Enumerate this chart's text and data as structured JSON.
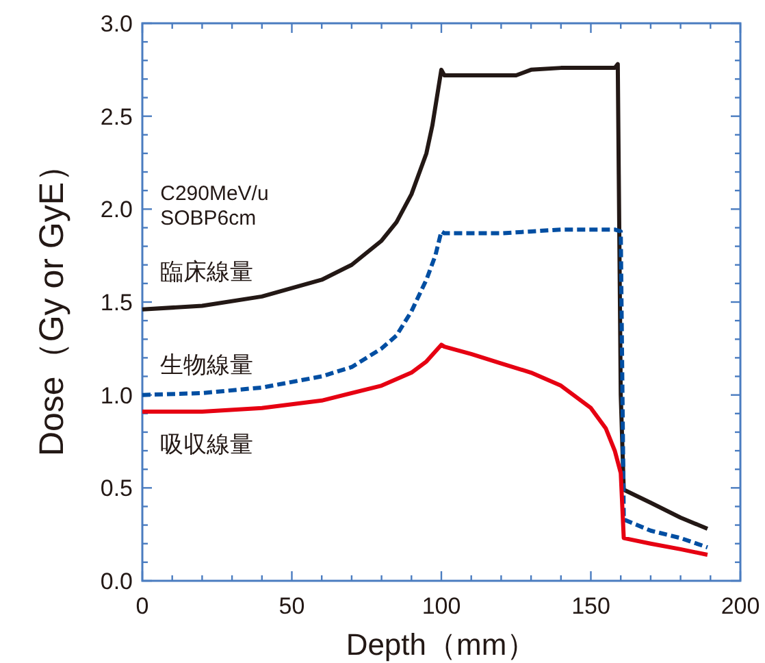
{
  "chart_data": {
    "type": "line",
    "xlabel": "Depth（mm）",
    "ylabel": "Dose（Gy or GyE）",
    "annotations": [
      "C290MeV/u",
      "SOBP6cm"
    ],
    "xlim": [
      0,
      200
    ],
    "ylim": [
      0,
      3.0
    ],
    "xticks": [
      0,
      {
        "value": 10,
        "label": null
      },
      {
        "value": 20,
        "label": null
      },
      {
        "value": 30,
        "label": null
      },
      {
        "value": 40,
        "label": null
      },
      50,
      {
        "value": 60,
        "label": null
      },
      {
        "value": 70,
        "label": null
      },
      {
        "value": 80,
        "label": null
      },
      {
        "value": 90,
        "label": null
      },
      100,
      {
        "value": 110,
        "label": null
      },
      {
        "value": 120,
        "label": null
      },
      {
        "value": 130,
        "label": null
      },
      {
        "value": 140,
        "label": null
      },
      150,
      {
        "value": 160,
        "label": null
      },
      {
        "value": 170,
        "label": null
      },
      {
        "value": 180,
        "label": null
      },
      {
        "value": 190,
        "label": null
      },
      200
    ],
    "yticks": [
      {
        "value": 0,
        "label": "0.0"
      },
      {
        "value": 0.1,
        "label": null
      },
      {
        "value": 0.2,
        "label": null
      },
      {
        "value": 0.3,
        "label": null
      },
      {
        "value": 0.4,
        "label": null
      },
      0.5,
      {
        "value": 0.6,
        "label": null
      },
      {
        "value": 0.7,
        "label": null
      },
      {
        "value": 0.8,
        "label": null
      },
      {
        "value": 0.9,
        "label": null
      },
      {
        "value": 1,
        "label": "1.0"
      },
      {
        "value": 1.1,
        "label": null
      },
      {
        "value": 1.2,
        "label": null
      },
      {
        "value": 1.3,
        "label": null
      },
      {
        "value": 1.4,
        "label": null
      },
      1.5,
      {
        "value": 1.6,
        "label": null
      },
      {
        "value": 1.7,
        "label": null
      },
      {
        "value": 1.8,
        "label": null
      },
      {
        "value": 1.9,
        "label": null
      },
      {
        "value": 2,
        "label": "2.0"
      },
      {
        "value": 2.1,
        "label": null
      },
      {
        "value": 2.2,
        "label": null
      },
      {
        "value": 2.3,
        "label": null
      },
      {
        "value": 2.4,
        "label": null
      },
      2.5,
      {
        "value": 2.6,
        "label": null
      },
      {
        "value": 2.7,
        "label": null
      },
      {
        "value": 2.8,
        "label": null
      },
      {
        "value": 2.9,
        "label": null
      },
      {
        "value": 3,
        "label": "3.0"
      }
    ],
    "series": [
      {
        "name": "臨床線量",
        "color": "#231815",
        "line_style": "solid",
        "x": [
          0,
          20,
          40,
          60,
          70,
          80,
          85,
          90,
          95,
          97,
          99,
          100,
          101,
          110,
          120,
          125,
          130,
          140,
          150,
          158,
          159,
          160,
          161,
          170,
          180,
          189
        ],
        "values": [
          1.46,
          1.48,
          1.53,
          1.62,
          1.7,
          1.83,
          1.93,
          2.08,
          2.3,
          2.45,
          2.65,
          2.75,
          2.72,
          2.72,
          2.72,
          2.72,
          2.75,
          2.76,
          2.76,
          2.76,
          2.78,
          1.0,
          0.49,
          0.42,
          0.34,
          0.28
        ]
      },
      {
        "name": "生物線量",
        "color": "#004ea2",
        "line_style": "dashed",
        "x": [
          0,
          20,
          40,
          60,
          70,
          80,
          85,
          90,
          95,
          98,
          100,
          101,
          120,
          130,
          140,
          158,
          160,
          161,
          170,
          180,
          189
        ],
        "values": [
          1.0,
          1.01,
          1.04,
          1.1,
          1.15,
          1.25,
          1.32,
          1.45,
          1.62,
          1.75,
          1.88,
          1.87,
          1.87,
          1.88,
          1.89,
          1.89,
          1.88,
          0.33,
          0.27,
          0.23,
          0.18
        ]
      },
      {
        "name": "吸収線量",
        "color": "#e60012",
        "line_style": "solid",
        "x": [
          0,
          20,
          40,
          60,
          80,
          90,
          95,
          100,
          101,
          110,
          120,
          130,
          140,
          150,
          155,
          158,
          160,
          161,
          170,
          180,
          189
        ],
        "values": [
          0.91,
          0.91,
          0.93,
          0.97,
          1.05,
          1.12,
          1.18,
          1.27,
          1.26,
          1.22,
          1.17,
          1.12,
          1.05,
          0.93,
          0.82,
          0.7,
          0.58,
          0.23,
          0.2,
          0.17,
          0.14
        ]
      }
    ]
  }
}
